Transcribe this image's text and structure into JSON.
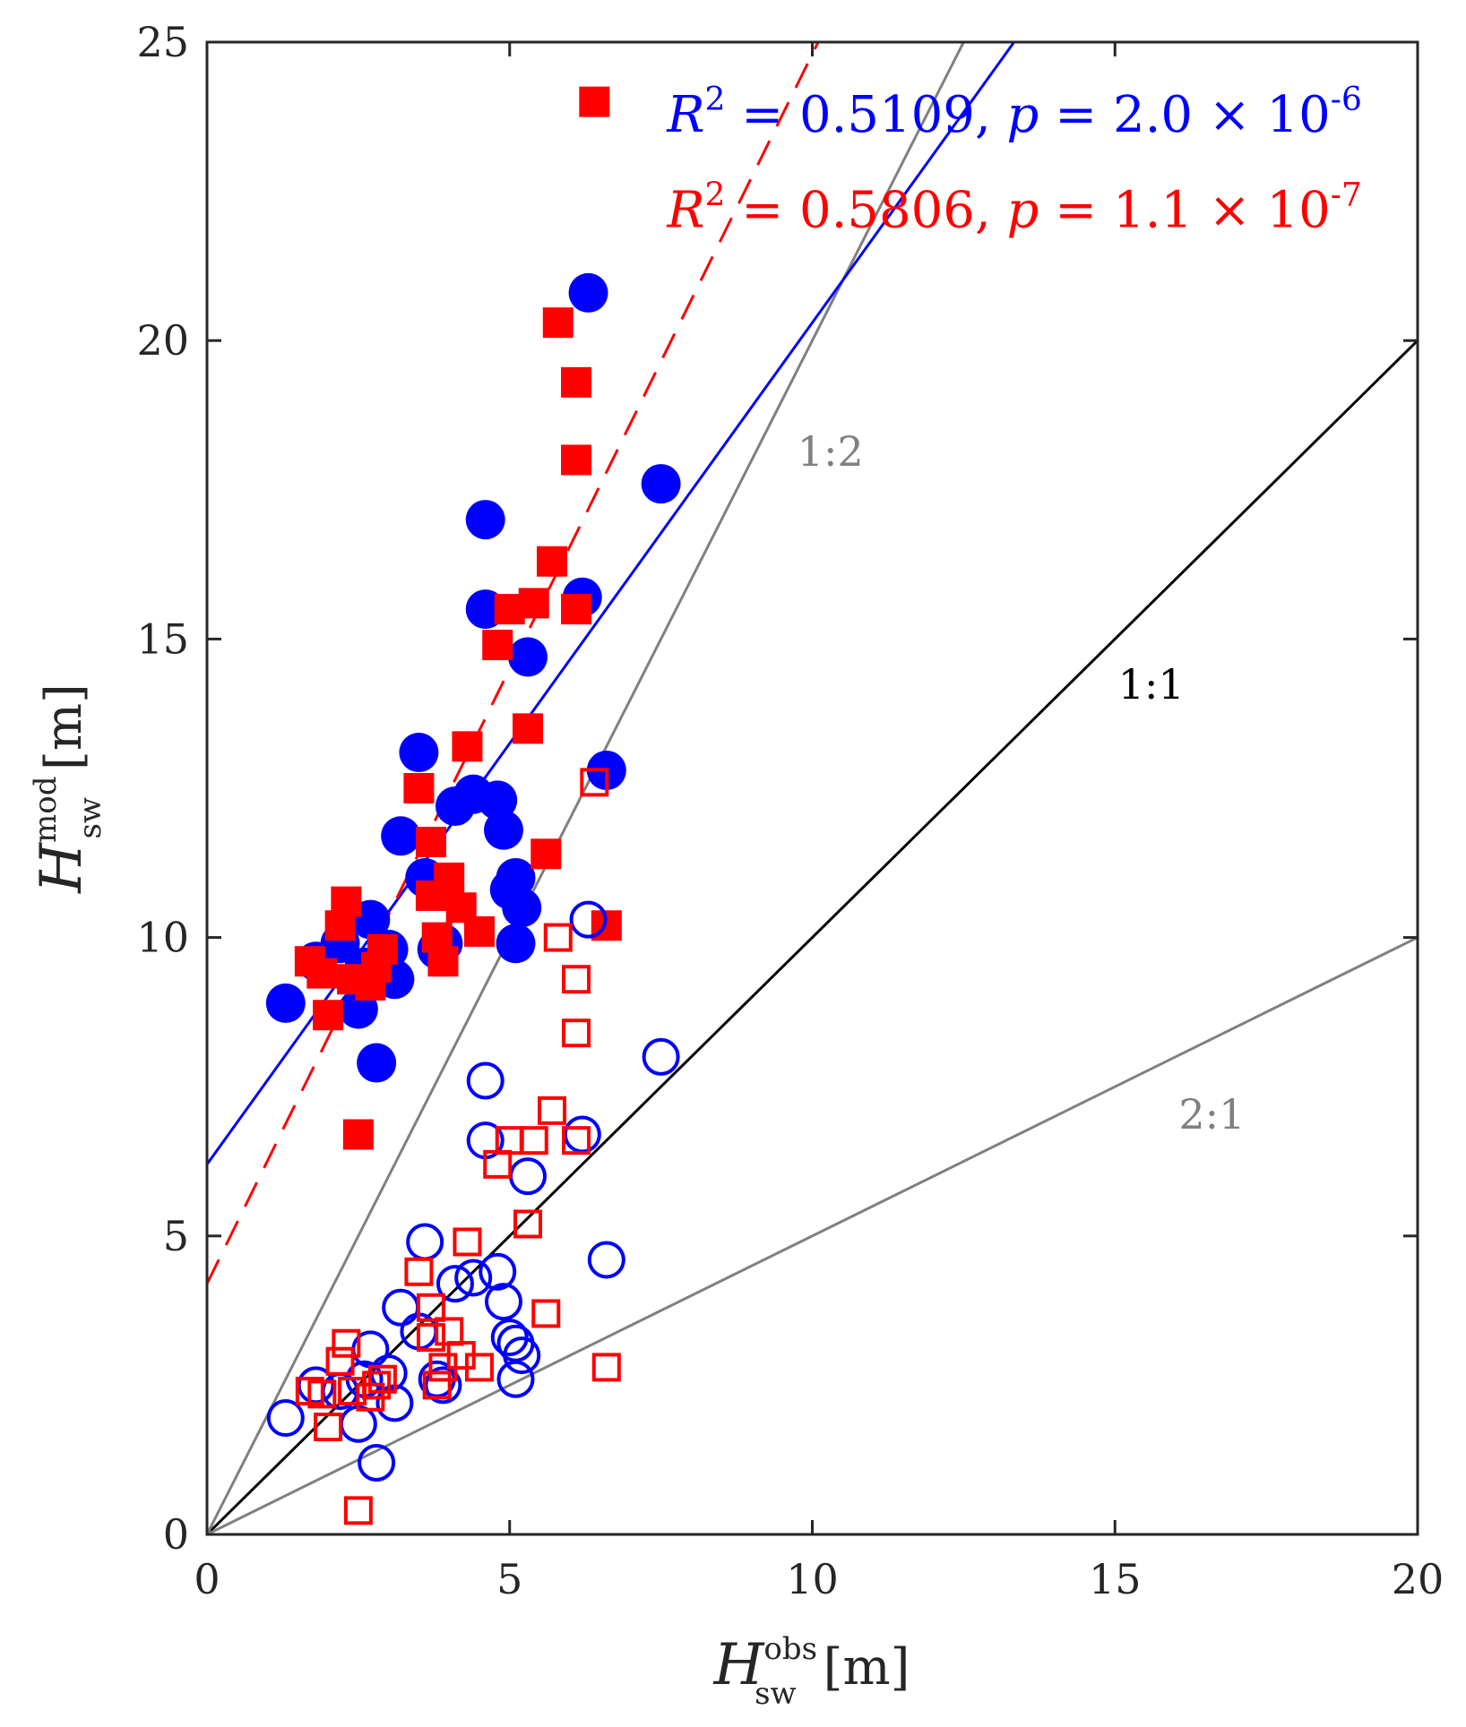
{
  "chart_data": {
    "type": "scatter",
    "title": "",
    "xlabel": {
      "main": "H",
      "sup": "obs",
      "sub": "sw",
      "unit": "[m]"
    },
    "ylabel": {
      "main": "H",
      "sup": "mod",
      "sub": "sw",
      "unit": "[m]"
    },
    "xlim": [
      0,
      20
    ],
    "ylim": [
      0,
      25
    ],
    "x_ticks": [
      0,
      5,
      10,
      15,
      20
    ],
    "y_ticks": [
      0,
      5,
      10,
      15,
      20,
      25
    ],
    "x_tick_labels": [
      "0",
      "5",
      "10",
      "15",
      "20"
    ],
    "y_tick_labels": [
      "0",
      "5",
      "10",
      "15",
      "20",
      "25"
    ],
    "grid": false,
    "colors": {
      "blue": "#0000ff",
      "red": "#ff0000",
      "gray": "#808080",
      "black": "#000000",
      "axis": "#262626"
    },
    "reference_lines": [
      {
        "label": "1:1",
        "slope": 1,
        "color": "#000000",
        "label_pos": [
          15.6,
          14.0
        ]
      },
      {
        "label": "1:2",
        "slope": 2,
        "color": "#808080",
        "label_pos": [
          10.3,
          17.9
        ]
      },
      {
        "label": "2:1",
        "slope": 0.5,
        "color": "#808080",
        "label_pos": [
          16.6,
          6.8
        ]
      }
    ],
    "fit_lines": [
      {
        "name": "blue fit",
        "color": "#0000ff",
        "style": "solid",
        "intercept": 6.2,
        "slope": 1.41
      },
      {
        "name": "red fit",
        "color": "#ff0000",
        "style": "dashed",
        "intercept": 4.2,
        "slope": 2.06,
        "x_end": 10.4
      }
    ],
    "annotations": [
      {
        "color": "#0000ff",
        "r2_value": "0.5109",
        "p_mantissa": "2.0",
        "p_exp": "-6",
        "anchor": [
          7.6,
          23.5
        ]
      },
      {
        "color": "#ff0000",
        "r2_value": "0.5806",
        "p_mantissa": "1.1",
        "p_exp": "-7",
        "anchor": [
          7.6,
          21.9
        ]
      }
    ],
    "series": [
      {
        "name": "blue filled circles",
        "marker": "circle",
        "filled": true,
        "color": "#0000ff",
        "x": [
          1.3,
          1.8,
          2.2,
          2.5,
          2.6,
          2.7,
          2.8,
          3.0,
          3.1,
          3.2,
          3.5,
          3.6,
          3.8,
          3.9,
          4.1,
          4.4,
          4.6,
          4.6,
          4.8,
          4.9,
          5.0,
          5.1,
          5.1,
          5.2,
          5.3,
          6.2,
          6.3,
          6.6,
          7.5
        ],
        "y": [
          8.9,
          9.6,
          9.9,
          8.8,
          9.5,
          10.3,
          7.9,
          9.8,
          9.3,
          11.7,
          13.1,
          11.0,
          9.8,
          9.9,
          12.2,
          12.4,
          17.0,
          15.5,
          12.3,
          11.8,
          10.8,
          9.9,
          11.0,
          10.5,
          14.7,
          15.7,
          20.8,
          12.8,
          17.6
        ]
      },
      {
        "name": "red filled squares",
        "marker": "square",
        "filled": true,
        "color": "#ff0000",
        "x": [
          1.7,
          1.9,
          2.0,
          2.2,
          2.3,
          2.4,
          2.5,
          2.7,
          2.8,
          2.9,
          3.5,
          3.7,
          3.7,
          3.8,
          3.9,
          4.0,
          4.2,
          4.3,
          4.5,
          4.8,
          5.0,
          5.3,
          5.4,
          5.6,
          5.7,
          5.8,
          6.1,
          6.1,
          6.1,
          6.4,
          6.6
        ],
        "y": [
          9.6,
          9.4,
          8.7,
          10.2,
          10.6,
          9.3,
          6.7,
          9.2,
          9.5,
          9.8,
          12.5,
          11.6,
          10.7,
          10.0,
          9.6,
          11.0,
          10.5,
          13.2,
          10.1,
          14.9,
          15.5,
          13.5,
          15.6,
          11.4,
          16.3,
          20.3,
          15.5,
          18.0,
          19.3,
          24.0,
          10.2
        ]
      },
      {
        "name": "blue open circles",
        "marker": "circle",
        "filled": false,
        "color": "#0000ff",
        "x": [
          1.3,
          1.8,
          2.2,
          2.5,
          2.6,
          2.7,
          2.8,
          3.0,
          3.1,
          3.2,
          3.5,
          3.6,
          3.8,
          3.9,
          4.1,
          4.4,
          4.6,
          4.6,
          4.8,
          4.9,
          5.0,
          5.1,
          5.1,
          5.2,
          5.3,
          6.2,
          6.3,
          6.6,
          7.5
        ],
        "y": [
          1.95,
          2.5,
          2.4,
          1.85,
          2.6,
          3.1,
          1.2,
          2.7,
          2.2,
          3.8,
          3.4,
          4.9,
          2.6,
          2.5,
          4.2,
          4.3,
          7.6,
          6.6,
          4.4,
          3.9,
          3.3,
          2.6,
          3.2,
          3.0,
          6.0,
          6.7,
          10.3,
          4.6,
          8.0
        ]
      },
      {
        "name": "red open squares",
        "marker": "square",
        "filled": false,
        "color": "#ff0000",
        "x": [
          1.7,
          1.9,
          2.0,
          2.2,
          2.3,
          2.4,
          2.5,
          2.7,
          2.8,
          2.9,
          3.5,
          3.7,
          3.7,
          3.8,
          3.9,
          4.0,
          4.2,
          4.3,
          4.5,
          4.8,
          5.0,
          5.3,
          5.4,
          5.6,
          5.7,
          5.8,
          6.1,
          6.1,
          6.1,
          6.4,
          6.6
        ],
        "y": [
          2.4,
          2.35,
          1.8,
          2.9,
          3.2,
          2.4,
          0.4,
          2.3,
          2.5,
          2.6,
          4.4,
          3.8,
          3.3,
          2.5,
          2.8,
          3.4,
          3.0,
          4.9,
          2.8,
          6.2,
          6.6,
          5.2,
          6.6,
          3.7,
          7.1,
          10.0,
          6.6,
          8.4,
          9.3,
          12.6,
          2.8
        ]
      }
    ]
  }
}
